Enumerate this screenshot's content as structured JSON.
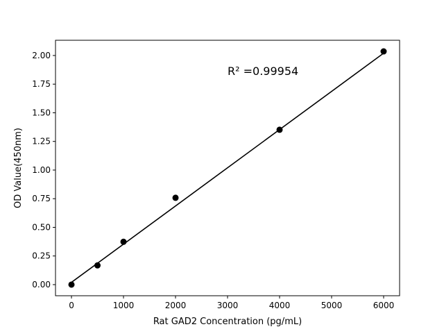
{
  "chart_data": {
    "type": "scatter",
    "title": "",
    "xlabel": "Rat GAD2 Concentration (pg/mL)",
    "ylabel": "OD Value(450nm)",
    "xlim": [
      -307,
      6307
    ],
    "ylim": [
      -0.097,
      2.133
    ],
    "xticks": [
      0,
      1000,
      2000,
      3000,
      4000,
      5000,
      6000
    ],
    "yticks": [
      0.0,
      0.25,
      0.5,
      0.75,
      1.0,
      1.25,
      1.5,
      1.75,
      2.0
    ],
    "xtick_labels": [
      "0",
      "1000",
      "2000",
      "3000",
      "4000",
      "5000",
      "6000"
    ],
    "ytick_labels": [
      "0.00",
      "0.25",
      "0.50",
      "0.75",
      "1.00",
      "1.25",
      "1.50",
      "1.75",
      "2.00"
    ],
    "points": {
      "x": [
        0,
        500,
        1000,
        2000,
        4000,
        6000
      ],
      "y": [
        0.0,
        0.168,
        0.374,
        0.758,
        1.352,
        2.036
      ]
    },
    "fit_line": {
      "x": [
        0,
        6000
      ],
      "y": [
        0.02,
        2.02
      ]
    },
    "annotation": "R² =0.99954",
    "grid": false,
    "color": "#000000"
  }
}
